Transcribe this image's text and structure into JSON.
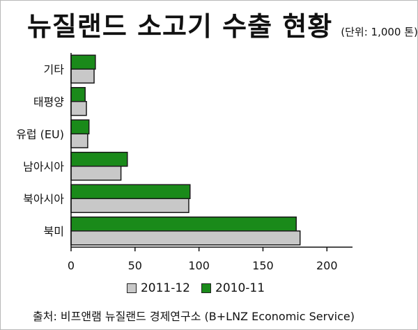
{
  "header": {
    "title": "뉴질랜드 소고기 수출 현황",
    "unit": "(단위: 1,000 톤)"
  },
  "source": "출처: 비프앤램 뉴질랜드 경제연구소 (B+LNZ Economic Service)",
  "colors": {
    "series_2011_12": "#c8c8c8",
    "series_2010_11": "#1a8a1a",
    "bar_stroke": "#1a1a1a",
    "axis": "#111111"
  },
  "chart_data": {
    "type": "bar",
    "orientation": "horizontal",
    "title": "뉴질랜드 소고기 수출 현황",
    "subtitle": "(단위: 1,000 톤)",
    "categories": [
      "기타",
      "태평양",
      "유럽 (EU)",
      "남아시아",
      "북아시아",
      "북미"
    ],
    "series": [
      {
        "name": "2011-12",
        "values": [
          18,
          12,
          13,
          39,
          92,
          179
        ]
      },
      {
        "name": "2010-11",
        "values": [
          19,
          11,
          14,
          44,
          93,
          176
        ]
      }
    ],
    "xticks": [
      0,
      50,
      100,
      150,
      200
    ],
    "xlim": [
      0,
      220
    ],
    "grid": false,
    "legend": "bottom"
  }
}
